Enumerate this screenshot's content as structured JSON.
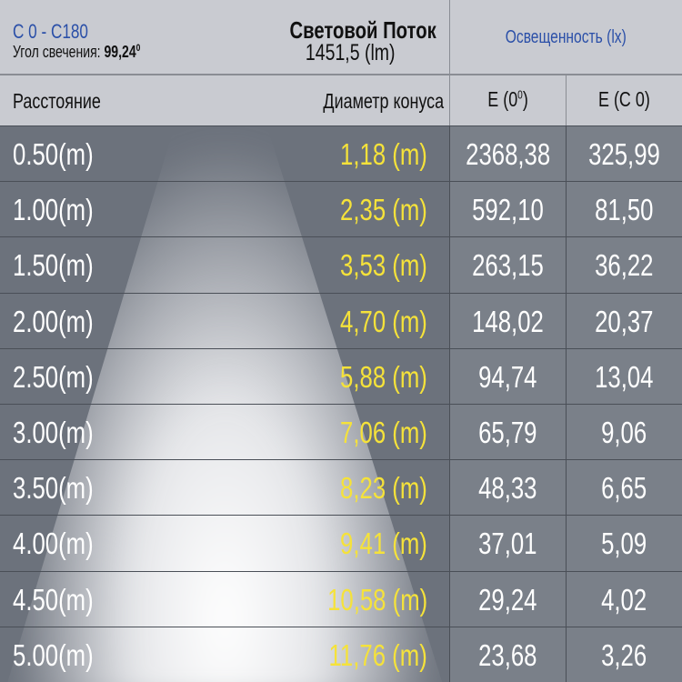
{
  "header": {
    "plane": "C 0 - C180",
    "angle_label": "Угол свечения:",
    "angle_value": "99,24",
    "angle_unit": "0",
    "flux_title": "Световой Поток",
    "flux_value": "1451,5 (lm)",
    "illuminance_title": "Освещенность (lx)"
  },
  "columns": {
    "distance": "Расстояние",
    "diameter": "Диаметр конуса",
    "e0": "E (0",
    "e0_sup": "0",
    "e0_close": ")",
    "ec0": "E (C 0)"
  },
  "colors": {
    "plane_text": "#2a4fa8",
    "diameter_text": "#f5e23a",
    "header_bg": "#c9cbd1"
  },
  "rows": [
    {
      "distance": "0.50(m)",
      "diameter": "1,18 (m)",
      "e0": "2368,38",
      "ec0": "325,99"
    },
    {
      "distance": "1.00(m)",
      "diameter": "2,35 (m)",
      "e0": "592,10",
      "ec0": "81,50"
    },
    {
      "distance": "1.50(m)",
      "diameter": "3,53 (m)",
      "e0": "263,15",
      "ec0": "36,22"
    },
    {
      "distance": "2.00(m)",
      "diameter": "4,70 (m)",
      "e0": "148,02",
      "ec0": "20,37"
    },
    {
      "distance": "2.50(m)",
      "diameter": "5,88 (m)",
      "e0": "94,74",
      "ec0": "13,04"
    },
    {
      "distance": "3.00(m)",
      "diameter": "7,06 (m)",
      "e0": "65,79",
      "ec0": "9,06"
    },
    {
      "distance": "3.50(m)",
      "diameter": "8,23 (m)",
      "e0": "48,33",
      "ec0": "6,65"
    },
    {
      "distance": "4.00(m)",
      "diameter": "9,41 (m)",
      "e0": "37,01",
      "ec0": "5,09"
    },
    {
      "distance": "4.50(m)",
      "diameter": "10,58 (m)",
      "e0": "29,24",
      "ec0": "4,02"
    },
    {
      "distance": "5.00(m)",
      "diameter": "11,76 (m)",
      "e0": "23,68",
      "ec0": "3,26"
    }
  ]
}
